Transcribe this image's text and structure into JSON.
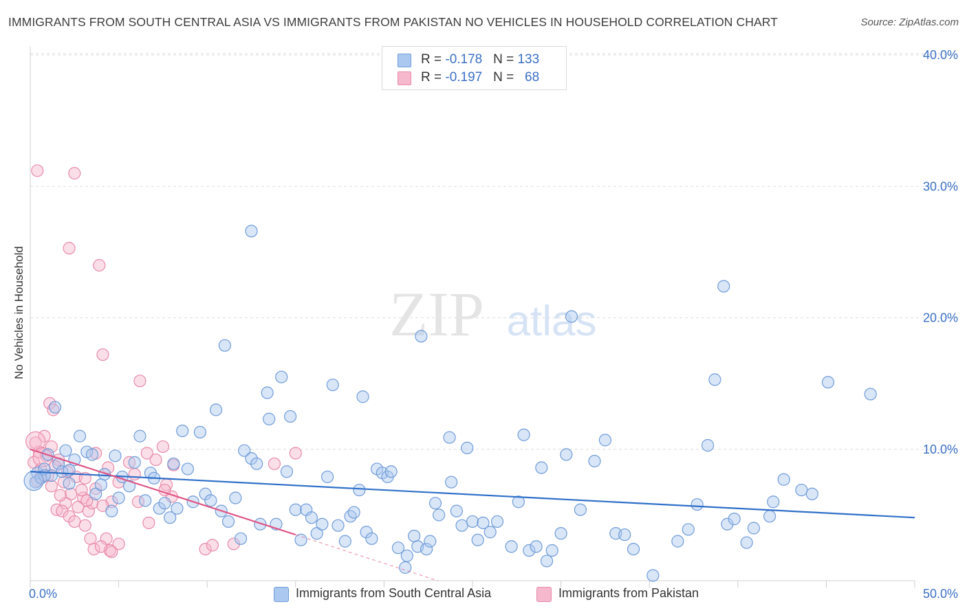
{
  "title": "IMMIGRANTS FROM SOUTH CENTRAL ASIA VS IMMIGRANTS FROM PAKISTAN NO VEHICLES IN HOUSEHOLD CORRELATION CHART",
  "source": "Source: ZipAtlas.com",
  "watermark": {
    "zip": "ZIP",
    "atlas": "atlas"
  },
  "colors": {
    "blue_fill": "#aac8f0",
    "blue_stroke": "#6f9bd8",
    "blue_line": "#2e6fc9",
    "pink_fill": "#f6b8cc",
    "pink_stroke": "#e889a8",
    "pink_line": "#e05585",
    "axis_text": "#3a6fc4",
    "grid": "#dddddd"
  },
  "legend_top": {
    "rows": [
      {
        "r_label": "R = ",
        "r_value": "-0.178",
        "n_label": "N = ",
        "n_value": "133"
      },
      {
        "r_label": "R = ",
        "r_value": "-0.197",
        "n_label": "N = ",
        "n_value": "68"
      }
    ]
  },
  "legend_bottom": {
    "items": [
      "Immigrants from South Central Asia",
      "Immigrants from Pakistan"
    ]
  },
  "chart_data": {
    "type": "scatter",
    "xlabel": "",
    "ylabel": "No Vehicles in Household",
    "xlim": [
      0,
      50
    ],
    "ylim": [
      0,
      40
    ],
    "x_ticks": [
      "0.0%",
      "50.0%"
    ],
    "y_ticks": [
      "10.0%",
      "20.0%",
      "30.0%",
      "40.0%"
    ],
    "y_tick_values": [
      10,
      20,
      30,
      40
    ],
    "grid": true,
    "legend_placement": "bottom",
    "series": [
      {
        "name": "Immigrants from South Central Asia",
        "trend": {
          "x": [
            0,
            50
          ],
          "y": [
            8.3,
            4.8
          ]
        },
        "points": [
          [
            0.3,
            7.5
          ],
          [
            0.4,
            8.2
          ],
          [
            0.6,
            7.8
          ],
          [
            0.8,
            8.5
          ],
          [
            1.0,
            9.6
          ],
          [
            1.2,
            8.0
          ],
          [
            1.4,
            13.2
          ],
          [
            1.6,
            8.9
          ],
          [
            1.8,
            8.3
          ],
          [
            2.0,
            9.9
          ],
          [
            2.2,
            7.4
          ],
          [
            2.5,
            9.2
          ],
          [
            2.8,
            11.0
          ],
          [
            3.2,
            9.8
          ],
          [
            3.5,
            9.6
          ],
          [
            3.7,
            6.6
          ],
          [
            4.0,
            7.3
          ],
          [
            4.2,
            8.1
          ],
          [
            4.6,
            5.3
          ],
          [
            4.8,
            9.5
          ],
          [
            5.0,
            6.3
          ],
          [
            5.2,
            7.9
          ],
          [
            5.6,
            7.2
          ],
          [
            5.9,
            9.0
          ],
          [
            6.2,
            11.0
          ],
          [
            6.5,
            6.1
          ],
          [
            6.8,
            8.2
          ],
          [
            7.0,
            7.8
          ],
          [
            7.3,
            5.5
          ],
          [
            7.6,
            5.9
          ],
          [
            7.9,
            4.8
          ],
          [
            8.1,
            8.9
          ],
          [
            8.3,
            5.5
          ],
          [
            8.6,
            11.4
          ],
          [
            8.9,
            8.5
          ],
          [
            9.2,
            6.0
          ],
          [
            9.6,
            11.3
          ],
          [
            9.9,
            6.6
          ],
          [
            10.2,
            6.1
          ],
          [
            10.5,
            13.0
          ],
          [
            10.8,
            5.3
          ],
          [
            11.0,
            17.9
          ],
          [
            11.2,
            4.5
          ],
          [
            11.6,
            6.3
          ],
          [
            11.9,
            3.2
          ],
          [
            12.1,
            9.9
          ],
          [
            12.5,
            9.3
          ],
          [
            12.8,
            8.9
          ],
          [
            13.0,
            4.3
          ],
          [
            13.4,
            14.3
          ],
          [
            13.5,
            12.3
          ],
          [
            13.9,
            4.3
          ],
          [
            14.2,
            15.5
          ],
          [
            14.5,
            8.3
          ],
          [
            14.7,
            12.5
          ],
          [
            15.0,
            5.4
          ],
          [
            15.3,
            3.1
          ],
          [
            15.6,
            5.4
          ],
          [
            15.9,
            4.8
          ],
          [
            16.2,
            3.6
          ],
          [
            16.5,
            4.3
          ],
          [
            16.8,
            7.9
          ],
          [
            17.1,
            14.9
          ],
          [
            17.4,
            4.2
          ],
          [
            17.8,
            3.0
          ],
          [
            18.1,
            4.9
          ],
          [
            18.3,
            5.2
          ],
          [
            18.6,
            6.9
          ],
          [
            18.8,
            14.0
          ],
          [
            19.0,
            3.7
          ],
          [
            19.3,
            3.2
          ],
          [
            19.6,
            8.5
          ],
          [
            19.9,
            8.2
          ],
          [
            20.2,
            7.9
          ],
          [
            20.4,
            8.3
          ],
          [
            20.8,
            2.5
          ],
          [
            21.2,
            1.0
          ],
          [
            21.3,
            1.9
          ],
          [
            21.7,
            3.4
          ],
          [
            21.9,
            2.6
          ],
          [
            22.1,
            18.6
          ],
          [
            22.4,
            2.4
          ],
          [
            22.6,
            3.0
          ],
          [
            22.9,
            5.9
          ],
          [
            23.1,
            5.0
          ],
          [
            23.7,
            10.9
          ],
          [
            23.8,
            7.5
          ],
          [
            24.1,
            5.3
          ],
          [
            24.4,
            4.2
          ],
          [
            24.7,
            10.1
          ],
          [
            25.0,
            4.5
          ],
          [
            25.3,
            3.1
          ],
          [
            25.6,
            4.4
          ],
          [
            26.0,
            3.7
          ],
          [
            26.4,
            4.5
          ],
          [
            27.2,
            2.6
          ],
          [
            27.6,
            6.0
          ],
          [
            27.9,
            11.1
          ],
          [
            28.2,
            2.3
          ],
          [
            28.6,
            2.6
          ],
          [
            28.9,
            8.6
          ],
          [
            29.2,
            1.5
          ],
          [
            29.5,
            2.3
          ],
          [
            30.0,
            3.6
          ],
          [
            30.3,
            9.6
          ],
          [
            30.6,
            20.1
          ],
          [
            31.1,
            5.4
          ],
          [
            31.9,
            9.1
          ],
          [
            32.5,
            10.7
          ],
          [
            33.1,
            3.6
          ],
          [
            33.6,
            3.5
          ],
          [
            34.1,
            2.4
          ],
          [
            35.2,
            0.4
          ],
          [
            36.6,
            3.0
          ],
          [
            37.2,
            3.9
          ],
          [
            37.7,
            5.8
          ],
          [
            38.3,
            10.3
          ],
          [
            38.7,
            15.3
          ],
          [
            39.2,
            22.4
          ],
          [
            39.4,
            4.3
          ],
          [
            39.8,
            4.7
          ],
          [
            40.5,
            2.9
          ],
          [
            40.9,
            4.0
          ],
          [
            41.8,
            4.9
          ],
          [
            42.0,
            6.0
          ],
          [
            42.6,
            7.7
          ],
          [
            43.6,
            6.9
          ],
          [
            44.2,
            6.6
          ],
          [
            45.1,
            15.1
          ],
          [
            47.5,
            14.2
          ],
          [
            12.5,
            26.6
          ],
          [
            2.2,
            8.4
          ],
          [
            0.8,
            8.0
          ]
        ],
        "big_points": [
          [
            0.2,
            7.6
          ]
        ]
      },
      {
        "name": "Immigrants from Pakistan",
        "trend": {
          "x": [
            0,
            15
          ],
          "y": [
            10.0,
            3.5
          ]
        },
        "trend_dashed": {
          "x": [
            15,
            29
          ],
          "y": [
            3.5,
            -2.6
          ]
        },
        "points": [
          [
            0.4,
            31.2
          ],
          [
            2.5,
            31.0
          ],
          [
            2.2,
            25.3
          ],
          [
            3.9,
            24.0
          ],
          [
            4.1,
            17.2
          ],
          [
            6.2,
            15.2
          ],
          [
            1.1,
            13.5
          ],
          [
            1.3,
            13.0
          ],
          [
            0.8,
            11.0
          ],
          [
            0.3,
            10.5
          ],
          [
            1.2,
            10.2
          ],
          [
            0.5,
            9.8
          ],
          [
            0.9,
            9.5
          ],
          [
            1.6,
            9.2
          ],
          [
            0.2,
            9.0
          ],
          [
            0.6,
            8.5
          ],
          [
            2.1,
            8.3
          ],
          [
            1.0,
            8.0
          ],
          [
            2.6,
            7.9
          ],
          [
            0.4,
            7.6
          ],
          [
            1.9,
            7.5
          ],
          [
            1.2,
            7.2
          ],
          [
            3.1,
            7.8
          ],
          [
            3.7,
            7.0
          ],
          [
            2.3,
            6.6
          ],
          [
            3.0,
            6.3
          ],
          [
            2.0,
            5.9
          ],
          [
            2.7,
            5.6
          ],
          [
            1.5,
            5.4
          ],
          [
            3.3,
            5.3
          ],
          [
            1.8,
            5.3
          ],
          [
            3.5,
            5.9
          ],
          [
            2.2,
            4.9
          ],
          [
            2.5,
            4.5
          ],
          [
            3.1,
            4.2
          ],
          [
            3.7,
            9.7
          ],
          [
            4.4,
            8.6
          ],
          [
            5.0,
            7.5
          ],
          [
            5.6,
            9.0
          ],
          [
            5.9,
            8.1
          ],
          [
            6.1,
            6.0
          ],
          [
            6.6,
            9.7
          ],
          [
            7.1,
            9.2
          ],
          [
            7.5,
            10.2
          ],
          [
            7.7,
            7.3
          ],
          [
            8.0,
            6.4
          ],
          [
            7.6,
            6.9
          ],
          [
            6.7,
            4.4
          ],
          [
            4.6,
            6.0
          ],
          [
            4.1,
            5.7
          ],
          [
            3.4,
            3.2
          ],
          [
            3.6,
            2.4
          ],
          [
            4.3,
            3.2
          ],
          [
            4.0,
            2.6
          ],
          [
            4.5,
            2.3
          ],
          [
            5.0,
            2.8
          ],
          [
            9.9,
            2.4
          ],
          [
            10.3,
            2.7
          ],
          [
            11.5,
            2.8
          ],
          [
            13.8,
            8.9
          ],
          [
            15.0,
            9.7
          ],
          [
            4.6,
            2.2
          ],
          [
            2.9,
            6.9
          ],
          [
            1.7,
            6.5
          ],
          [
            0.6,
            7.9
          ],
          [
            1.4,
            8.7
          ],
          [
            8.1,
            8.8
          ],
          [
            3.2,
            6.1
          ]
        ],
        "big_points": [
          [
            0.3,
            10.6
          ],
          [
            0.7,
            9.4
          ]
        ]
      }
    ]
  }
}
